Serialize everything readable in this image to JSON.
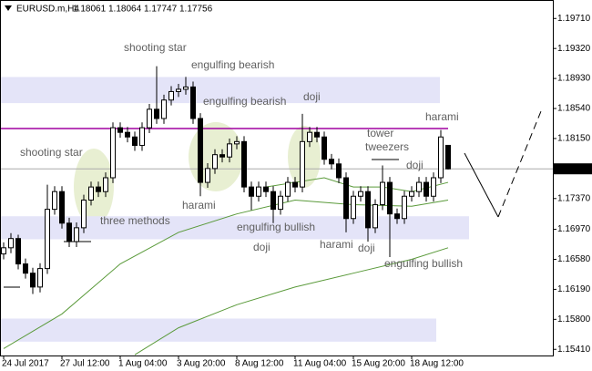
{
  "chart_data": {
    "type": "candlestick",
    "title": "EURUSD.m,H4",
    "header_values": [
      1.18061,
      1.18064,
      1.17747,
      1.17756
    ],
    "categories": [
      "24 Jul 2017",
      null,
      null,
      null,
      null,
      null,
      null,
      null,
      "27 Jul 12:00",
      null,
      null,
      null,
      null,
      null,
      null,
      null,
      "1 Aug 04:00",
      null,
      null,
      null,
      null,
      null,
      null,
      null,
      "3 Aug 20:00",
      null,
      null,
      null,
      null,
      null,
      null,
      null,
      "8 Aug 12:00",
      null,
      null,
      null,
      null,
      null,
      null,
      null,
      "11 Aug 04:00",
      null,
      null,
      null,
      null,
      null,
      null,
      null,
      "15 Aug 20:00",
      null,
      null,
      null,
      null,
      null,
      null,
      null,
      "18 Aug 12:00",
      null,
      null,
      null,
      null,
      null
    ],
    "open": [
      1.1665,
      1.1673,
      1.1685,
      1.1652,
      1.164,
      1.1622,
      1.1646,
      1.1723,
      1.1746,
      1.1705,
      1.1681,
      1.1699,
      1.1735,
      1.1752,
      1.1746,
      1.1764,
      1.1829,
      1.1823,
      1.1817,
      1.1806,
      1.1829,
      1.1853,
      1.1841,
      1.1865,
      1.1876,
      1.1879,
      1.1882,
      1.1841,
      1.1758,
      1.1776,
      1.1794,
      1.1791,
      1.1808,
      1.1811,
      1.1752,
      1.174,
      1.1752,
      1.1746,
      1.1723,
      1.174,
      1.1758,
      1.1752,
      1.1811,
      1.1823,
      1.1817,
      1.1788,
      1.1782,
      1.1764,
      1.1711,
      1.174,
      1.1746,
      1.1699,
      1.1729,
      1.1758,
      1.1717,
      1.1711,
      1.174,
      1.1746,
      1.1758,
      1.174,
      1.1764,
      1.18061
    ],
    "high": [
      1.168,
      1.1692,
      1.169,
      1.1659,
      1.1647,
      1.1653,
      1.1755,
      1.1753,
      1.1753,
      1.1712,
      1.1706,
      1.1742,
      1.1759,
      1.1759,
      1.1771,
      1.1836,
      1.1836,
      1.183,
      1.1824,
      1.1836,
      1.186,
      1.1909,
      1.1872,
      1.1883,
      1.1886,
      1.1895,
      1.1889,
      1.1848,
      1.1783,
      1.1801,
      1.1801,
      1.1815,
      1.1818,
      1.1818,
      1.1759,
      1.1759,
      1.1759,
      1.1753,
      1.1747,
      1.1765,
      1.1765,
      1.1847,
      1.183,
      1.183,
      1.1824,
      1.1795,
      1.1789,
      1.1771,
      1.1747,
      1.1753,
      1.1753,
      1.1736,
      1.178,
      1.1765,
      1.1724,
      1.1747,
      1.1753,
      1.1765,
      1.1765,
      1.1771,
      1.1826,
      1.18064
    ],
    "low": [
      1.1658,
      1.1666,
      1.1645,
      1.1633,
      1.1613,
      1.1615,
      1.1639,
      1.1716,
      1.1698,
      1.1674,
      1.1674,
      1.1692,
      1.1728,
      1.1739,
      1.1739,
      1.1757,
      1.1816,
      1.181,
      1.1799,
      1.1799,
      1.1822,
      1.1834,
      1.1834,
      1.1858,
      1.1869,
      1.1872,
      1.1834,
      1.174,
      1.1751,
      1.1769,
      1.1784,
      1.1784,
      1.1801,
      1.1745,
      1.1722,
      1.1733,
      1.1739,
      1.1705,
      1.1716,
      1.1733,
      1.1745,
      1.1745,
      1.1804,
      1.181,
      1.1781,
      1.1775,
      1.1757,
      1.1693,
      1.1704,
      1.1733,
      1.1681,
      1.1692,
      1.1722,
      1.1661,
      1.1704,
      1.1704,
      1.1733,
      1.1739,
      1.1733,
      1.1733,
      1.1757,
      1.17747
    ],
    "close": [
      1.1673,
      1.1685,
      1.1652,
      1.164,
      1.1622,
      1.1646,
      1.1723,
      1.1746,
      1.1705,
      1.1681,
      1.1699,
      1.1735,
      1.1752,
      1.1746,
      1.1764,
      1.1829,
      1.1823,
      1.1817,
      1.1806,
      1.1829,
      1.1853,
      1.1841,
      1.1865,
      1.1876,
      1.1879,
      1.1882,
      1.1841,
      1.1758,
      1.1776,
      1.1794,
      1.1791,
      1.1808,
      1.1811,
      1.1752,
      1.174,
      1.1752,
      1.1746,
      1.1723,
      1.174,
      1.1758,
      1.1752,
      1.1811,
      1.1823,
      1.1817,
      1.1788,
      1.1782,
      1.1764,
      1.1711,
      1.174,
      1.1746,
      1.1699,
      1.1729,
      1.1758,
      1.1717,
      1.1711,
      1.174,
      1.1746,
      1.1758,
      1.174,
      1.1764,
      1.1817,
      1.17756
    ],
    "up_color": "#ffffff",
    "down_color": "#000000",
    "moving_averages": [
      {
        "color": "#5a9a3a",
        "x": [
          36,
          40,
          44,
          48,
          52,
          56,
          61
        ],
        "values": [
          1.1752,
          1.1758,
          1.1764,
          1.1752,
          1.1752,
          1.1746,
          1.1758
        ]
      },
      {
        "color": "#5a9a3a",
        "x": [
          0,
          8,
          16,
          24,
          32,
          40,
          48,
          56,
          61
        ],
        "values": [
          1.1542,
          1.1587,
          1.1652,
          1.1693,
          1.1717,
          1.1735,
          1.1729,
          1.1727,
          1.1735
        ]
      },
      {
        "color": "#5a9a3a",
        "x": [
          18,
          24,
          32,
          40,
          48,
          56,
          61
        ],
        "values": [
          1.1534,
          1.1569,
          1.1599,
          1.1622,
          1.164,
          1.1658,
          1.1673
        ]
      }
    ],
    "zones": [
      [
        1.1895,
        1.1861
      ],
      [
        1.1714,
        1.1684
      ],
      [
        1.1581,
        1.1551
      ]
    ],
    "zone_color": "#e4e4f8",
    "resistance": 1.1828,
    "resistance_color": "#a000a0",
    "last_price": 1.17756,
    "ylim": [
      1.1533,
      1.1995
    ],
    "yticks": [
      {
        "value": 1.1971,
        "label": "1.19710"
      },
      {
        "value": 1.1932,
        "label": "1.19320"
      },
      {
        "value": 1.1893,
        "label": "1.18930"
      },
      {
        "value": 1.1854,
        "label": "1.18540"
      },
      {
        "value": 1.1815,
        "label": "1.18150"
      },
      {
        "value": 1.1737,
        "label": "1.17370"
      },
      {
        "value": 1.1697,
        "label": "1.16970"
      },
      {
        "value": 1.1658,
        "label": "1.16580"
      },
      {
        "value": 1.1619,
        "label": "1.16190"
      },
      {
        "value": 1.158,
        "label": "1.15800"
      },
      {
        "value": 1.1541,
        "label": "1.15410"
      }
    ],
    "grid": false,
    "annotations": [
      "shooting star",
      "engulfing bearish",
      "engulfing bearish",
      "doji",
      "harami",
      "tower",
      "tweezers",
      "doji",
      "shooting star",
      "three methods",
      "harami",
      "engulfing bullish",
      "doji",
      "harami",
      "doji",
      "engulfing bullish"
    ]
  }
}
